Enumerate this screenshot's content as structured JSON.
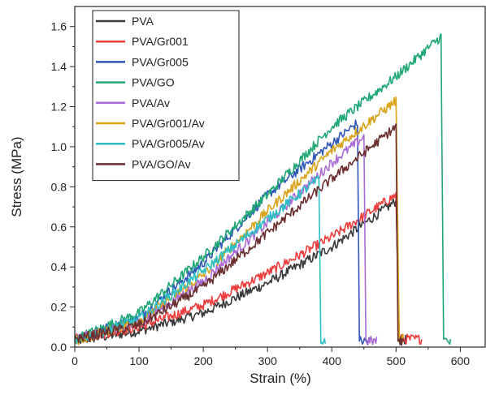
{
  "chart_data": {
    "type": "line",
    "xlabel": "Strain (%)",
    "ylabel": "Stress (MPa)",
    "xlim": [
      0,
      640
    ],
    "ylim": [
      0,
      1.7
    ],
    "x_ticks": [
      0,
      100,
      200,
      300,
      400,
      500,
      600
    ],
    "x_tick_labels": [
      "0",
      "100",
      "200",
      "300",
      "400",
      "500",
      "600"
    ],
    "y_ticks": [
      0.0,
      0.2,
      0.4,
      0.6,
      0.8,
      1.0,
      1.2,
      1.4,
      1.6
    ],
    "y_tick_labels": [
      "0.0",
      "0.2",
      "0.4",
      "0.6",
      "0.8",
      "1.0",
      "1.2",
      "1.4",
      "1.6"
    ],
    "grid": false,
    "legend_position": "top-left",
    "series": [
      {
        "name": "PVA",
        "color": "#3a3a3a",
        "noise": 0.025,
        "points": [
          [
            0,
            0.03
          ],
          [
            100,
            0.08
          ],
          [
            200,
            0.17
          ],
          [
            300,
            0.32
          ],
          [
            400,
            0.5
          ],
          [
            500,
            0.73
          ],
          [
            505,
            0.03
          ],
          [
            515,
            0.04
          ]
        ]
      },
      {
        "name": "PVA/Gr001",
        "color": "#ee3b3b",
        "noise": 0.025,
        "points": [
          [
            0,
            0.04
          ],
          [
            100,
            0.1
          ],
          [
            200,
            0.21
          ],
          [
            300,
            0.37
          ],
          [
            400,
            0.55
          ],
          [
            500,
            0.76
          ],
          [
            505,
            0.04
          ],
          [
            540,
            0.04
          ]
        ]
      },
      {
        "name": "PVA/Gr005",
        "color": "#2f55b8",
        "noise": 0.025,
        "points": [
          [
            0,
            0.04
          ],
          [
            100,
            0.15
          ],
          [
            200,
            0.42
          ],
          [
            300,
            0.76
          ],
          [
            440,
            1.12
          ],
          [
            443,
            0.03
          ],
          [
            460,
            0.03
          ]
        ]
      },
      {
        "name": "PVA/GO",
        "color": "#1fa774",
        "noise": 0.025,
        "points": [
          [
            0,
            0.04
          ],
          [
            100,
            0.17
          ],
          [
            200,
            0.45
          ],
          [
            300,
            0.76
          ],
          [
            400,
            1.1
          ],
          [
            500,
            1.35
          ],
          [
            570,
            1.55
          ],
          [
            574,
            0.04
          ],
          [
            585,
            0.02
          ]
        ]
      },
      {
        "name": "PVA/Av",
        "color": "#a86ad6",
        "noise": 0.025,
        "points": [
          [
            0,
            0.04
          ],
          [
            100,
            0.12
          ],
          [
            200,
            0.33
          ],
          [
            300,
            0.62
          ],
          [
            400,
            0.92
          ],
          [
            450,
            1.05
          ],
          [
            453,
            0.03
          ],
          [
            470,
            0.03
          ]
        ]
      },
      {
        "name": "PVA/Gr001/Av",
        "color": "#d9a31a",
        "noise": 0.025,
        "points": [
          [
            0,
            0.03
          ],
          [
            100,
            0.13
          ],
          [
            200,
            0.36
          ],
          [
            300,
            0.68
          ],
          [
            400,
            0.98
          ],
          [
            500,
            1.23
          ],
          [
            505,
            0.04
          ],
          [
            512,
            0.04
          ]
        ]
      },
      {
        "name": "PVA/Gr005/Av",
        "color": "#2cbfc4",
        "noise": 0.025,
        "points": [
          [
            0,
            0.03
          ],
          [
            100,
            0.14
          ],
          [
            200,
            0.38
          ],
          [
            300,
            0.64
          ],
          [
            380,
            0.84
          ],
          [
            383,
            0.02
          ],
          [
            390,
            0.04
          ]
        ]
      },
      {
        "name": "PVA/GO/Av",
        "color": "#6b2f2f",
        "noise": 0.025,
        "points": [
          [
            0,
            0.04
          ],
          [
            100,
            0.11
          ],
          [
            200,
            0.3
          ],
          [
            300,
            0.57
          ],
          [
            400,
            0.84
          ],
          [
            500,
            1.1
          ],
          [
            503,
            0.03
          ],
          [
            510,
            0.03
          ]
        ]
      }
    ]
  }
}
